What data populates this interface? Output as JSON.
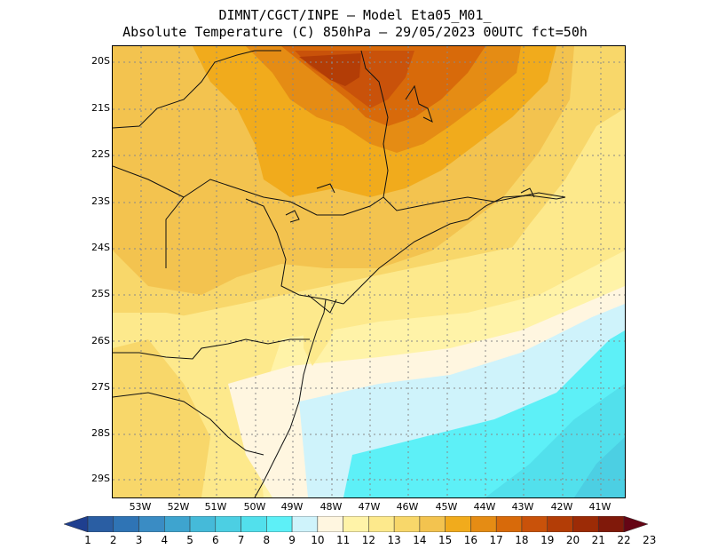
{
  "title_line1": "DIMNT/CGCT/INPE –  Model Eta05_M01_",
  "title_line2": "Absolute Temperature (C) 850hPa –  29/05/2023 00UTC fct=50h",
  "lat_labels": [
    "20S",
    "21S",
    "22S",
    "23S",
    "24S",
    "25S",
    "26S",
    "27S",
    "28S",
    "29S"
  ],
  "lon_labels": [
    "53W",
    "52W",
    "51W",
    "50W",
    "49W",
    "48W",
    "47W",
    "46W",
    "45W",
    "44W",
    "43W",
    "42W",
    "41W"
  ],
  "colorbar": {
    "labels": [
      "1",
      "2",
      "3",
      "4",
      "5",
      "6",
      "7",
      "8",
      "9",
      "10",
      "11",
      "12",
      "13",
      "14",
      "15",
      "16",
      "17",
      "18",
      "19",
      "20",
      "21",
      "22",
      "23"
    ],
    "colors": [
      "#1f3f8f",
      "#2a5ea3",
      "#2f74b5",
      "#3a8cc4",
      "#3ea4cf",
      "#45bad9",
      "#4ccfe3",
      "#52e0ec",
      "#5df0f7",
      "#cff3fb",
      "#fff6e0",
      "#fff3a8",
      "#fde98c",
      "#f8d76a",
      "#f3c34f",
      "#f1ab1c",
      "#e58c14",
      "#d86a0a",
      "#c9520a",
      "#b33d06",
      "#9c2b06",
      "#80190a",
      "#650515"
    ]
  },
  "map_colors": {
    "t16": "#f1ab1c",
    "t15": "#f3c34f",
    "t14": "#f8d76a",
    "t13": "#fde98c",
    "t12": "#fff3a8",
    "t11": "#fff6e0",
    "t10": "#cff3fb",
    "t9": "#5df0f7",
    "t8": "#52e0ec",
    "t7": "#4ccfe3",
    "t17": "#e58c14",
    "t18": "#d86a0a",
    "t19": "#c9520a",
    "t20": "#b33d06"
  }
}
